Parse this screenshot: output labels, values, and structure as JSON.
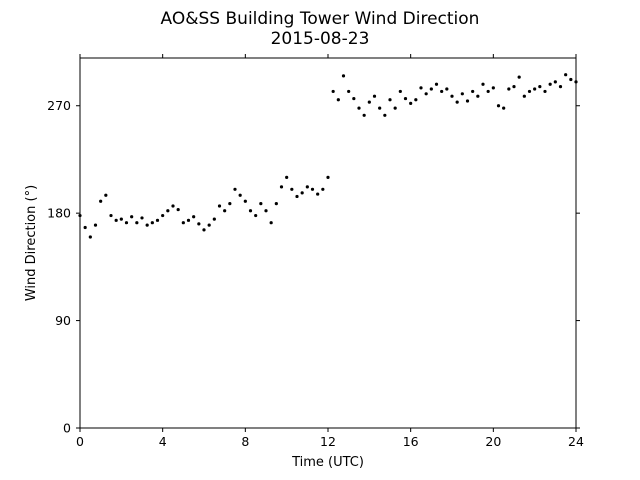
{
  "chart_data": {
    "type": "scatter",
    "title": "AO&SS Building Tower Wind Direction",
    "subtitle": "2015-08-23",
    "xlabel": "Time (UTC)",
    "ylabel": "Wind Direction (°)",
    "xlim": [
      0,
      24
    ],
    "ylim": [
      0,
      310
    ],
    "xticks": [
      0,
      4,
      8,
      12,
      16,
      20,
      24
    ],
    "yticks": [
      0,
      90,
      180,
      270
    ],
    "grid": false,
    "marker_color": "#000000",
    "series": [
      {
        "x": [
          0.0,
          0.25,
          0.5,
          0.75,
          1.0,
          1.25,
          1.5,
          1.75,
          2.0,
          2.25,
          2.5,
          2.75,
          3.0,
          3.25,
          3.5,
          3.75,
          4.0,
          4.25,
          4.5,
          4.75,
          5.0,
          5.25,
          5.5,
          5.75,
          6.0,
          6.25,
          6.5,
          6.75,
          7.0,
          7.25,
          7.5,
          7.75,
          8.0,
          8.25,
          8.5,
          8.75,
          9.0,
          9.25,
          9.5,
          9.75,
          10.0,
          10.25,
          10.5,
          10.75,
          11.0,
          11.25,
          11.5,
          11.75,
          12.0,
          12.25,
          12.5,
          12.75,
          13.0,
          13.25,
          13.5,
          13.75,
          14.0,
          14.25,
          14.5,
          14.75,
          15.0,
          15.25,
          15.5,
          15.75,
          16.0,
          16.25,
          16.5,
          16.75,
          17.0,
          17.25,
          17.5,
          17.75,
          18.0,
          18.25,
          18.5,
          18.75,
          19.0,
          19.25,
          19.5,
          19.75,
          20.0,
          20.25,
          20.5,
          20.75,
          21.0,
          21.25,
          21.5,
          21.75,
          22.0,
          22.25,
          22.5,
          22.75,
          23.0,
          23.25,
          23.5,
          23.75,
          24.0
        ],
        "y": [
          178,
          168,
          160,
          170,
          190,
          195,
          178,
          174,
          175,
          172,
          177,
          172,
          176,
          170,
          172,
          174,
          178,
          182,
          186,
          183,
          172,
          174,
          177,
          171,
          166,
          170,
          175,
          186,
          182,
          188,
          200,
          195,
          190,
          182,
          178,
          188,
          182,
          172,
          188,
          202,
          210,
          200,
          194,
          197,
          202,
          200,
          196,
          200,
          210,
          282,
          275,
          295,
          282,
          276,
          268,
          262,
          273,
          278,
          268,
          262,
          275,
          268,
          282,
          276,
          272,
          275,
          285,
          280,
          284,
          288,
          282,
          284,
          278,
          273,
          280,
          274,
          282,
          278,
          288,
          282,
          285,
          270,
          268,
          284,
          286,
          294,
          278,
          282,
          284,
          286,
          282,
          288,
          290,
          286,
          296,
          292,
          290
        ]
      }
    ]
  }
}
